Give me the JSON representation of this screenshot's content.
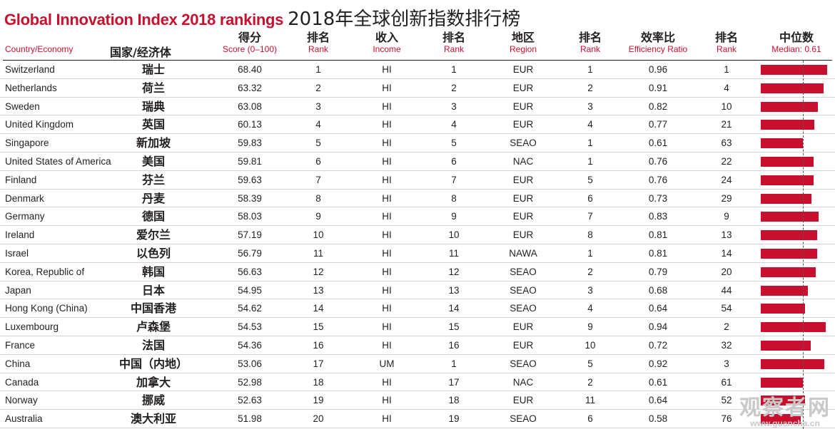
{
  "title": {
    "en": "Global Innovation Index 2018 rankings",
    "zh": "2018年全球创新指数排行榜"
  },
  "headers": {
    "country_en": "Country/Economy",
    "country_zh": "国家/经济体",
    "score_zh": "得分",
    "score_en": "Score (0–100)",
    "rank_zh": "排名",
    "rank_en": "Rank",
    "income_zh": "收入",
    "income_en": "Income",
    "income_rank_zh": "排名",
    "income_rank_en": "Rank",
    "region_zh": "地区",
    "region_en": "Region",
    "region_rank_zh": "排名",
    "region_rank_en": "Rank",
    "efficiency_zh": "效率比",
    "efficiency_en": "Efficiency Ratio",
    "efficiency_rank_zh": "排名",
    "efficiency_rank_en": "Rank",
    "median_zh": "中位数",
    "median_en": "Median: 0.61"
  },
  "median_value": 0.61,
  "bar_color": "#c8102e",
  "accent_color": "#c8102e",
  "rows": [
    {
      "en": "Switzerland",
      "zh": "瑞士",
      "score": "68.40",
      "rank": "1",
      "income": "HI",
      "income_rank": "1",
      "region": "EUR",
      "region_rank": "1",
      "efficiency": "0.96",
      "efficiency_rank": "1"
    },
    {
      "en": "Netherlands",
      "zh": "荷兰",
      "score": "63.32",
      "rank": "2",
      "income": "HI",
      "income_rank": "2",
      "region": "EUR",
      "region_rank": "2",
      "efficiency": "0.91",
      "efficiency_rank": "4"
    },
    {
      "en": "Sweden",
      "zh": "瑞典",
      "score": "63.08",
      "rank": "3",
      "income": "HI",
      "income_rank": "3",
      "region": "EUR",
      "region_rank": "3",
      "efficiency": "0.82",
      "efficiency_rank": "10"
    },
    {
      "en": "United Kingdom",
      "zh": "英国",
      "score": "60.13",
      "rank": "4",
      "income": "HI",
      "income_rank": "4",
      "region": "EUR",
      "region_rank": "4",
      "efficiency": "0.77",
      "efficiency_rank": "21"
    },
    {
      "en": "Singapore",
      "zh": "新加坡",
      "score": "59.83",
      "rank": "5",
      "income": "HI",
      "income_rank": "5",
      "region": "SEAO",
      "region_rank": "1",
      "efficiency": "0.61",
      "efficiency_rank": "63"
    },
    {
      "en": "United States of America",
      "zh": "美国",
      "score": "59.81",
      "rank": "6",
      "income": "HI",
      "income_rank": "6",
      "region": "NAC",
      "region_rank": "1",
      "efficiency": "0.76",
      "efficiency_rank": "22"
    },
    {
      "en": "Finland",
      "zh": "芬兰",
      "score": "59.63",
      "rank": "7",
      "income": "HI",
      "income_rank": "7",
      "region": "EUR",
      "region_rank": "5",
      "efficiency": "0.76",
      "efficiency_rank": "24"
    },
    {
      "en": "Denmark",
      "zh": "丹麦",
      "score": "58.39",
      "rank": "8",
      "income": "HI",
      "income_rank": "8",
      "region": "EUR",
      "region_rank": "6",
      "efficiency": "0.73",
      "efficiency_rank": "29"
    },
    {
      "en": "Germany",
      "zh": "德国",
      "score": "58.03",
      "rank": "9",
      "income": "HI",
      "income_rank": "9",
      "region": "EUR",
      "region_rank": "7",
      "efficiency": "0.83",
      "efficiency_rank": "9"
    },
    {
      "en": "Ireland",
      "zh": "爱尔兰",
      "score": "57.19",
      "rank": "10",
      "income": "HI",
      "income_rank": "10",
      "region": "EUR",
      "region_rank": "8",
      "efficiency": "0.81",
      "efficiency_rank": "13"
    },
    {
      "en": "Israel",
      "zh": "以色列",
      "score": "56.79",
      "rank": "11",
      "income": "HI",
      "income_rank": "11",
      "region": "NAWA",
      "region_rank": "1",
      "efficiency": "0.81",
      "efficiency_rank": "14"
    },
    {
      "en": "Korea, Republic of",
      "zh": "韩国",
      "score": "56.63",
      "rank": "12",
      "income": "HI",
      "income_rank": "12",
      "region": "SEAO",
      "region_rank": "2",
      "efficiency": "0.79",
      "efficiency_rank": "20"
    },
    {
      "en": "Japan",
      "zh": "日本",
      "score": "54.95",
      "rank": "13",
      "income": "HI",
      "income_rank": "13",
      "region": "SEAO",
      "region_rank": "3",
      "efficiency": "0.68",
      "efficiency_rank": "44"
    },
    {
      "en": "Hong Kong (China)",
      "zh": "中国香港",
      "score": "54.62",
      "rank": "14",
      "income": "HI",
      "income_rank": "14",
      "region": "SEAO",
      "region_rank": "4",
      "efficiency": "0.64",
      "efficiency_rank": "54"
    },
    {
      "en": "Luxembourg",
      "zh": "卢森堡",
      "score": "54.53",
      "rank": "15",
      "income": "HI",
      "income_rank": "15",
      "region": "EUR",
      "region_rank": "9",
      "efficiency": "0.94",
      "efficiency_rank": "2"
    },
    {
      "en": "France",
      "zh": "法国",
      "score": "54.36",
      "rank": "16",
      "income": "HI",
      "income_rank": "16",
      "region": "EUR",
      "region_rank": "10",
      "efficiency": "0.72",
      "efficiency_rank": "32"
    },
    {
      "en": "China",
      "zh": "中国（内地）",
      "score": "53.06",
      "rank": "17",
      "income": "UM",
      "income_rank": "1",
      "region": "SEAO",
      "region_rank": "5",
      "efficiency": "0.92",
      "efficiency_rank": "3"
    },
    {
      "en": "Canada",
      "zh": "加拿大",
      "score": "52.98",
      "rank": "18",
      "income": "HI",
      "income_rank": "17",
      "region": "NAC",
      "region_rank": "2",
      "efficiency": "0.61",
      "efficiency_rank": "61"
    },
    {
      "en": "Norway",
      "zh": "挪威",
      "score": "52.63",
      "rank": "19",
      "income": "HI",
      "income_rank": "18",
      "region": "EUR",
      "region_rank": "11",
      "efficiency": "0.64",
      "efficiency_rank": "52"
    },
    {
      "en": "Australia",
      "zh": "澳大利亚",
      "score": "51.98",
      "rank": "20",
      "income": "HI",
      "income_rank": "19",
      "region": "SEAO",
      "region_rank": "6",
      "efficiency": "0.58",
      "efficiency_rank": "76"
    }
  ],
  "watermark": {
    "zh": "观察者网",
    "en": "www.guancha.cn"
  }
}
